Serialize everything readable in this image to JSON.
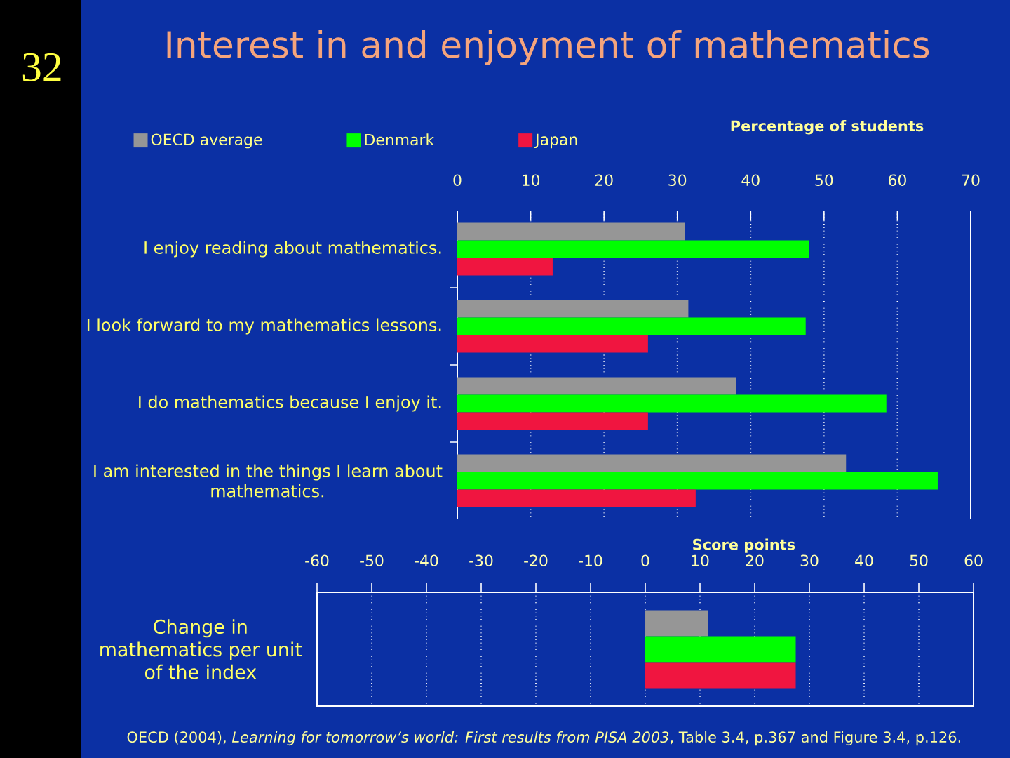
{
  "chart_data": [
    {
      "type": "bar",
      "orientation": "horizontal",
      "title": "Interest in and enjoyment of mathematics",
      "xlabel": "Percentage of students",
      "categories": [
        "I enjoy reading about mathematics.",
        "I look forward to my mathematics lessons.",
        "I do mathematics because I enjoy it.",
        "I am interested in the things I learn about mathematics."
      ],
      "series": [
        {
          "name": "OECD average",
          "color": "#969696",
          "values": [
            31,
            31.5,
            38,
            53
          ]
        },
        {
          "name": "Denmark",
          "color": "#00ff00",
          "values": [
            48,
            47.5,
            58.5,
            65.5
          ]
        },
        {
          "name": "Japan",
          "color": "#f01540",
          "values": [
            13,
            26,
            26,
            32.5
          ]
        }
      ],
      "xlim": [
        0,
        70
      ],
      "xticks": [
        0,
        10,
        20,
        30,
        40,
        50,
        60,
        70
      ],
      "grid": "x",
      "legend": "top left",
      "annotations": [
        "32"
      ]
    },
    {
      "type": "bar",
      "orientation": "horizontal",
      "xlabel": "Score points",
      "categories": [
        "Change in mathematics per unit of the index"
      ],
      "series": [
        {
          "color": "#969696",
          "values": [
            11.5
          ]
        },
        {
          "color": "#00ff00",
          "values": [
            27.5
          ]
        },
        {
          "color": "#f01540",
          "values": [
            27.5
          ]
        }
      ],
      "xlim": [
        -60,
        60
      ],
      "xticks": [
        -60,
        -50,
        -40,
        -30,
        -20,
        -10,
        0,
        10,
        20,
        30,
        40,
        50,
        60
      ],
      "grid": "x",
      "annotations": [
        "OECD (2004), *Learning for tomorrow’s world: First results from PISA 2003*, Table 3.4, p.367 and Figure 3.4, p.126."
      ]
    }
  ]
}
